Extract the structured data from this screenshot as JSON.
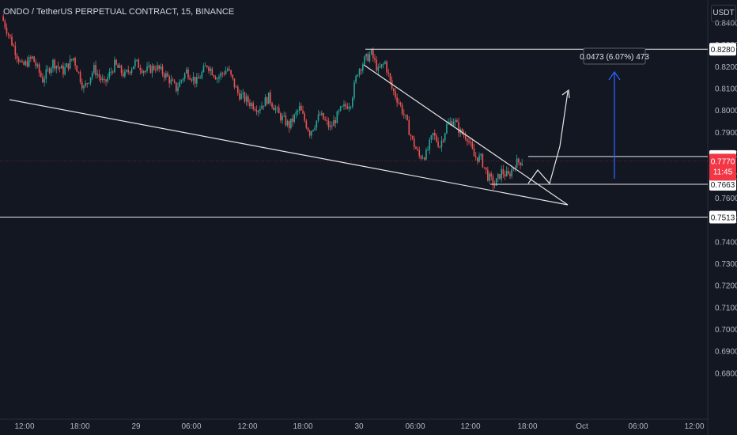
{
  "title": "ONDO / TetherUS PERPETUAL CONTRACT, 15, BINANCE",
  "currency_button": "USDT",
  "colors": {
    "background": "#131722",
    "up": "#26a69a",
    "down": "#ef5350",
    "drawing": "#e6e6e6",
    "measure": "#2962ff",
    "price_tag": "#f23645"
  },
  "chart_data": {
    "type": "candlestick",
    "y_axis": {
      "ticks": [
        "0.8400",
        "0.8300",
        "0.8200",
        "0.8100",
        "0.8000",
        "0.7900",
        "0.7800",
        "0.7700",
        "0.7600",
        "0.7500",
        "0.7400",
        "0.7300",
        "0.7200",
        "0.7100",
        "0.7000",
        "0.6900",
        "0.6800"
      ],
      "range": [
        0.677,
        0.845
      ]
    },
    "x_axis": {
      "ticks": [
        "12:00",
        "18:00",
        "29",
        "06:00",
        "12:00",
        "18:00",
        "30",
        "06:00",
        "12:00",
        "18:00",
        "Oct",
        "06:00",
        "12:00"
      ]
    },
    "price_labels": [
      {
        "value": "0.8280",
        "style": "line"
      },
      {
        "value": "0.7790",
        "style": "line"
      },
      {
        "value": "0.7770",
        "style": "current",
        "timer": "11:45"
      },
      {
        "value": "0.7663",
        "style": "line"
      },
      {
        "value": "0.7513",
        "style": "line"
      }
    ],
    "measure_label": "0.0473 (6.07%) 473",
    "key_levels": [
      {
        "name": "resistance-top",
        "price": 0.828
      },
      {
        "name": "breakout-level",
        "price": 0.779
      },
      {
        "name": "support-low",
        "price": 0.7663
      },
      {
        "name": "lower-support",
        "price": 0.7513
      }
    ],
    "price_path": [
      [
        0,
        0.843
      ],
      [
        6,
        0.831
      ],
      [
        12,
        0.82
      ],
      [
        18,
        0.824
      ],
      [
        24,
        0.814
      ],
      [
        30,
        0.822
      ],
      [
        36,
        0.818
      ],
      [
        42,
        0.824
      ],
      [
        48,
        0.81
      ],
      [
        54,
        0.819
      ],
      [
        60,
        0.812
      ],
      [
        66,
        0.821
      ],
      [
        72,
        0.816
      ],
      [
        78,
        0.822
      ],
      [
        84,
        0.818
      ],
      [
        90,
        0.82
      ],
      [
        96,
        0.816
      ],
      [
        102,
        0.81
      ],
      [
        108,
        0.818
      ],
      [
        114,
        0.813
      ],
      [
        120,
        0.821
      ],
      [
        126,
        0.815
      ],
      [
        132,
        0.819
      ],
      [
        138,
        0.808
      ],
      [
        144,
        0.804
      ],
      [
        150,
        0.801
      ],
      [
        156,
        0.806
      ],
      [
        162,
        0.798
      ],
      [
        168,
        0.793
      ],
      [
        174,
        0.801
      ],
      [
        180,
        0.79
      ],
      [
        186,
        0.798
      ],
      [
        192,
        0.792
      ],
      [
        198,
        0.8
      ],
      [
        204,
        0.804
      ],
      [
        208,
        0.818
      ],
      [
        212,
        0.823
      ],
      [
        216,
        0.826
      ],
      [
        220,
        0.818
      ],
      [
        224,
        0.822
      ],
      [
        228,
        0.81
      ],
      [
        232,
        0.804
      ],
      [
        236,
        0.796
      ],
      [
        240,
        0.786
      ],
      [
        244,
        0.779
      ],
      [
        248,
        0.78
      ],
      [
        252,
        0.789
      ],
      [
        256,
        0.784
      ],
      [
        260,
        0.793
      ],
      [
        264,
        0.796
      ],
      [
        268,
        0.79
      ],
      [
        272,
        0.788
      ],
      [
        276,
        0.779
      ],
      [
        280,
        0.778
      ],
      [
        284,
        0.77
      ],
      [
        288,
        0.766
      ],
      [
        292,
        0.772
      ],
      [
        296,
        0.77
      ],
      [
        300,
        0.776
      ],
      [
        304,
        0.777
      ]
    ]
  }
}
